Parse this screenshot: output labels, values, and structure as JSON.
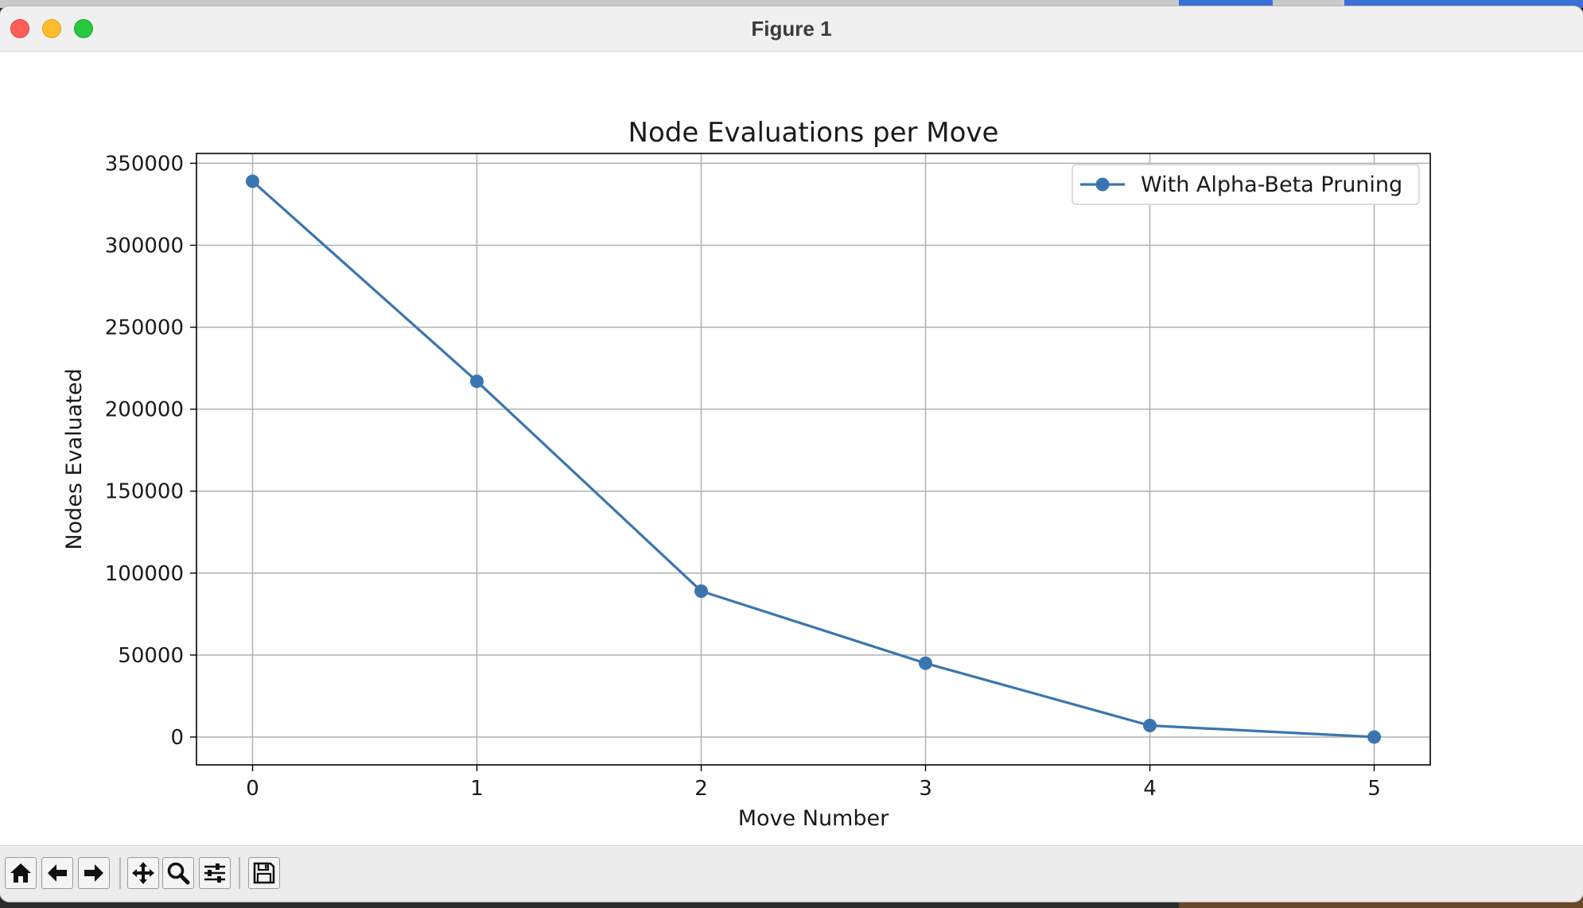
{
  "window": {
    "title": "Figure 1"
  },
  "toolbar": {
    "buttons": [
      {
        "name": "home-icon"
      },
      {
        "name": "back-arrow-icon"
      },
      {
        "name": "forward-arrow-icon"
      },
      {
        "name": "pan-icon"
      },
      {
        "name": "zoom-icon"
      },
      {
        "name": "configure-subplots-icon"
      },
      {
        "name": "save-icon"
      }
    ]
  },
  "chart_data": {
    "type": "line",
    "title": "Node Evaluations per Move",
    "xlabel": "Move Number",
    "ylabel": "Nodes Evaluated",
    "x": [
      0,
      1,
      2,
      3,
      4,
      5
    ],
    "xticks": [
      "0",
      "1",
      "2",
      "3",
      "4",
      "5"
    ],
    "yticks": [
      "0",
      "50000",
      "100000",
      "150000",
      "200000",
      "250000",
      "300000",
      "350000"
    ],
    "xlim": [
      -0.25,
      5.25
    ],
    "ylim": [
      -17000,
      356000
    ],
    "series": [
      {
        "name": "With Alpha-Beta Pruning",
        "values": [
          339000,
          217000,
          89000,
          45000,
          7000,
          0
        ],
        "color": "#3b75af",
        "marker": "circle"
      }
    ],
    "grid": true,
    "legend": "top-right"
  }
}
